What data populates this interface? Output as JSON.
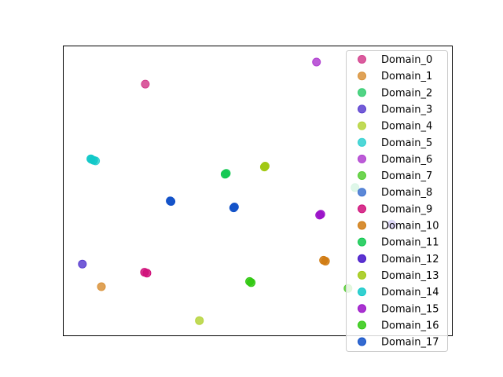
{
  "chart_data": {
    "type": "scatter",
    "title": "",
    "xlabel": "",
    "ylabel": "",
    "xlim": [
      0,
      100
    ],
    "ylim": [
      0,
      100
    ],
    "grid": false,
    "axis_ticks": false,
    "legend": {
      "placement": "top-right"
    },
    "series": [
      {
        "name": "Domain_0",
        "color": "#d43f8d",
        "points": [
          [
            21.2,
            86.7
          ]
        ]
      },
      {
        "name": "Domain_1",
        "color": "#d9923a",
        "points": [
          [
            9.9,
            16.8
          ]
        ]
      },
      {
        "name": "Domain_2",
        "color": "#33cc70",
        "points": [
          [
            75.1,
            51.0
          ]
        ]
      },
      {
        "name": "Domain_3",
        "color": "#5a3fd0",
        "points": [
          [
            5.0,
            24.6
          ]
        ]
      },
      {
        "name": "Domain_4",
        "color": "#b5d33a",
        "points": [
          [
            35.1,
            5.1
          ]
        ]
      },
      {
        "name": "Domain_5",
        "color": "#30d0d0",
        "points": [
          [
            7.4,
            60.7
          ],
          [
            8.4,
            60.2
          ]
        ]
      },
      {
        "name": "Domain_6",
        "color": "#b03fd0",
        "points": [
          [
            65.2,
            94.3
          ]
        ]
      },
      {
        "name": "Domain_7",
        "color": "#55cc33",
        "points": [
          [
            73.3,
            16.2
          ]
        ]
      },
      {
        "name": "Domain_8",
        "color": "#3f73d0",
        "points": [
          [
            84.5,
            38.4
          ]
        ]
      },
      {
        "name": "Domain_9",
        "color": "#d0107a",
        "points": [
          [
            21.6,
            21.5
          ],
          [
            21.0,
            21.8
          ]
        ]
      },
      {
        "name": "Domain_10",
        "color": "#d07a10",
        "points": [
          [
            67.5,
            25.6
          ],
          [
            67.0,
            25.9
          ]
        ]
      },
      {
        "name": "Domain_11",
        "color": "#10c850",
        "points": [
          [
            42.0,
            55.9
          ],
          [
            41.7,
            55.6
          ]
        ]
      },
      {
        "name": "Domain_12",
        "color": "#4010c8",
        "points": [
          [
            84.6,
            38.2
          ]
        ]
      },
      {
        "name": "Domain_13",
        "color": "#a0c810",
        "points": [
          [
            52.0,
            58.4
          ],
          [
            51.8,
            58.1
          ]
        ]
      },
      {
        "name": "Domain_14",
        "color": "#10c8c8",
        "points": [
          [
            7.2,
            60.9
          ],
          [
            7.9,
            60.4
          ]
        ]
      },
      {
        "name": "Domain_15",
        "color": "#9a10c8",
        "points": [
          [
            66.3,
            41.8
          ],
          [
            66.0,
            41.5
          ]
        ]
      },
      {
        "name": "Domain_16",
        "color": "#30c810",
        "points": [
          [
            48.0,
            18.6
          ],
          [
            48.4,
            18.2
          ]
        ]
      },
      {
        "name": "Domain_17",
        "color": "#1050c8",
        "points": [
          [
            27.8,
            46.2
          ],
          [
            27.6,
            46.4
          ],
          [
            43.9,
            44.0
          ],
          [
            44.1,
            44.3
          ]
        ]
      }
    ]
  }
}
